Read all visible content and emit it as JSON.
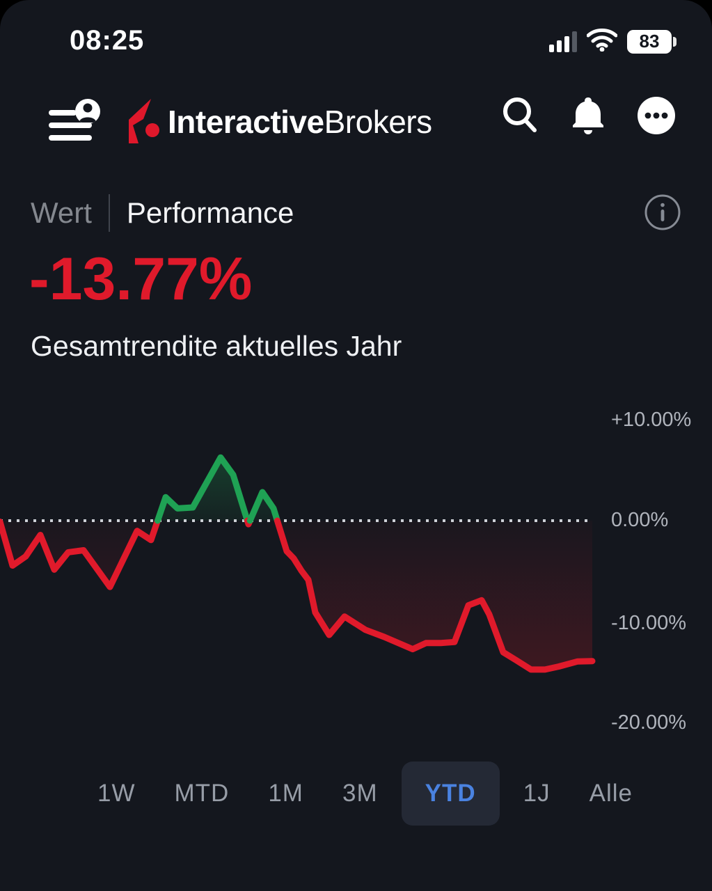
{
  "status_bar": {
    "time": "08:25",
    "battery_percent": "83"
  },
  "header": {
    "brand_bold": "Interactive",
    "brand_regular": "Brokers",
    "icons": [
      "menu",
      "search",
      "notifications",
      "more-options"
    ]
  },
  "tabs": {
    "wert": "Wert",
    "performance": "Performance"
  },
  "headline": {
    "value": "-13.77%",
    "subtitle": "Gesamtrendite aktuelles Jahr"
  },
  "colors": {
    "negative_red": "#e01a2b",
    "positive_green": "#1fa254",
    "accent_blue": "#4a82e0",
    "background": "#14171e"
  },
  "chart_data": {
    "type": "line",
    "title": "Gesamtrendite aktuelles Jahr (YTD)",
    "final_value_pct": -13.77,
    "y_axis": {
      "labels": [
        "+10.00%",
        "0.00%",
        "-10.00%",
        "-20.00%"
      ],
      "values": [
        10,
        0,
        -10,
        -20
      ],
      "ylim": [
        -20,
        10
      ]
    },
    "zero_line": 0,
    "grid": "dotted-zero-line-only",
    "legend": "none",
    "series": [
      {
        "name": "YTD Gesamtrendite %",
        "points": [
          [
            0,
            -0.1
          ],
          [
            18,
            -4.4
          ],
          [
            37,
            -3.5
          ],
          [
            58,
            -1.4
          ],
          [
            78,
            -4.8
          ],
          [
            98,
            -3.1
          ],
          [
            120,
            -2.9
          ],
          [
            158,
            -6.5
          ],
          [
            197,
            -1.0
          ],
          [
            217,
            -1.9
          ],
          [
            238,
            2.3
          ],
          [
            255,
            1.2
          ],
          [
            277,
            1.3
          ],
          [
            317,
            6.2
          ],
          [
            335,
            4.5
          ],
          [
            357,
            -0.35
          ],
          [
            377,
            2.8
          ],
          [
            393,
            1.2
          ],
          [
            412,
            -3.0
          ],
          [
            422,
            -3.7
          ],
          [
            433,
            -4.9
          ],
          [
            443,
            -5.8
          ],
          [
            453,
            -9.0
          ],
          [
            473,
            -11.2
          ],
          [
            495,
            -9.4
          ],
          [
            525,
            -10.7
          ],
          [
            552,
            -11.4
          ],
          [
            593,
            -12.6
          ],
          [
            612,
            -12.0
          ],
          [
            633,
            -12.0
          ],
          [
            653,
            -11.9
          ],
          [
            673,
            -8.3
          ],
          [
            692,
            -7.8
          ],
          [
            703,
            -9.2
          ],
          [
            723,
            -12.9
          ],
          [
            742,
            -13.7
          ],
          [
            763,
            -14.6
          ],
          [
            783,
            -14.6
          ],
          [
            803,
            -14.3
          ],
          [
            830,
            -13.8
          ],
          [
            851,
            -13.77
          ]
        ]
      }
    ]
  },
  "periods": {
    "labels": [
      "1W",
      "MTD",
      "1M",
      "3M",
      "YTD",
      "1J",
      "Alle"
    ],
    "active": "YTD"
  }
}
